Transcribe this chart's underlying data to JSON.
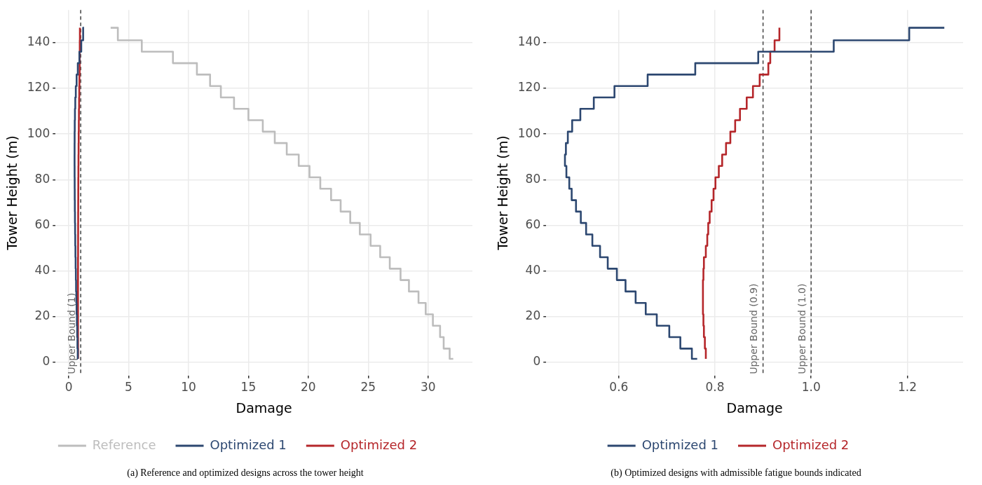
{
  "chart_data": [
    {
      "type": "step",
      "xlabel": "Damage",
      "ylabel": "Tower Height (m)",
      "xlim": [
        -1.1,
        33.7
      ],
      "ylim": [
        -5.8,
        154.3
      ],
      "xticks": [
        0,
        5,
        10,
        15,
        20,
        25,
        30
      ],
      "yticks": [
        0,
        20,
        40,
        60,
        80,
        100,
        120,
        140
      ],
      "grid": true,
      "legend": "bottom",
      "marker": "none",
      "ref_lines": [
        {
          "axis": "x",
          "value": 1,
          "label": "Upper Bound (1)",
          "color": "#4d4d4d",
          "line_style": "dashed"
        }
      ],
      "series": [
        {
          "name": "Reference",
          "color": "#bdbdbd",
          "x": [
            32.1,
            31.8,
            31.3,
            31.0,
            30.4,
            29.8,
            29.2,
            28.4,
            27.7,
            26.8,
            26.0,
            25.2,
            24.3,
            23.5,
            22.7,
            21.9,
            21.0,
            20.1,
            19.2,
            18.2,
            17.2,
            16.2,
            15.0,
            13.8,
            12.7,
            11.8,
            10.7,
            8.7,
            6.1,
            4.1,
            3.5
          ],
          "values": [
            1.5,
            6,
            11,
            16,
            21,
            26,
            31,
            36,
            41,
            46,
            51,
            56,
            61,
            66,
            71,
            76,
            81,
            86,
            91,
            96,
            101,
            106,
            111,
            116,
            121,
            126,
            131,
            136,
            141,
            146.5,
            146.5
          ]
        },
        {
          "name": "Optimized 1",
          "color": "#2c4770",
          "x": [
            0.763,
            0.752,
            0.728,
            0.705,
            0.679,
            0.656,
            0.635,
            0.614,
            0.596,
            0.577,
            0.561,
            0.545,
            0.532,
            0.521,
            0.511,
            0.502,
            0.497,
            0.491,
            0.488,
            0.49,
            0.494,
            0.503,
            0.52,
            0.548,
            0.591,
            0.66,
            0.759,
            0.89,
            1.047,
            1.204,
            1.277
          ],
          "values": [
            1.5,
            6,
            11,
            16,
            21,
            26,
            31,
            36,
            41,
            46,
            51,
            56,
            61,
            66,
            71,
            76,
            81,
            86,
            91,
            96,
            101,
            106,
            111,
            116,
            121,
            126,
            131,
            136,
            141,
            146.5,
            146.5
          ]
        },
        {
          "name": "Optimized 2",
          "color": "#b5262a",
          "x": [
            0.781,
            0.781,
            0.779,
            0.777,
            0.776,
            0.775,
            0.775,
            0.775,
            0.776,
            0.777,
            0.781,
            0.784,
            0.786,
            0.789,
            0.793,
            0.797,
            0.801,
            0.808,
            0.815,
            0.823,
            0.832,
            0.842,
            0.852,
            0.866,
            0.879,
            0.893,
            0.911,
            0.915,
            0.924,
            0.934,
            0.934
          ],
          "values": [
            1.5,
            6,
            11,
            16,
            21,
            26,
            31,
            36,
            41,
            46,
            51,
            56,
            61,
            66,
            71,
            76,
            81,
            86,
            91,
            96,
            101,
            106,
            111,
            116,
            121,
            126,
            131,
            136,
            141,
            146.5,
            146.5
          ]
        }
      ],
      "annotations": [
        "(a) Reference and optimized designs across the tower height"
      ]
    },
    {
      "type": "step",
      "xlabel": "Damage",
      "ylabel": "Tower Height (m)",
      "xlim": [
        0.449,
        1.316
      ],
      "ylim": [
        -5.8,
        154.3
      ],
      "xticks": [
        0.6,
        0.8,
        {
          "value": 1,
          "label": "1.0"
        },
        1.2
      ],
      "yticks": [
        0,
        20,
        40,
        60,
        80,
        100,
        120,
        140
      ],
      "grid": true,
      "legend": "bottom",
      "marker": "none",
      "ref_lines": [
        {
          "axis": "x",
          "value": 0.9,
          "label": "Upper Bound (0.9)",
          "color": "#4d4d4d",
          "line_style": "dashed"
        },
        {
          "axis": "x",
          "value": 1,
          "label": "Upper Bound (1.0)",
          "color": "#4d4d4d",
          "line_style": "dashed"
        }
      ],
      "series": [
        {
          "name": "Optimized 1",
          "color": "#2c4770",
          "x": [
            0.763,
            0.752,
            0.728,
            0.705,
            0.679,
            0.656,
            0.635,
            0.614,
            0.596,
            0.577,
            0.561,
            0.545,
            0.532,
            0.521,
            0.511,
            0.502,
            0.497,
            0.491,
            0.488,
            0.49,
            0.494,
            0.503,
            0.52,
            0.548,
            0.591,
            0.66,
            0.759,
            0.89,
            1.047,
            1.204,
            1.277
          ],
          "values": [
            1.5,
            6,
            11,
            16,
            21,
            26,
            31,
            36,
            41,
            46,
            51,
            56,
            61,
            66,
            71,
            76,
            81,
            86,
            91,
            96,
            101,
            106,
            111,
            116,
            121,
            126,
            131,
            136,
            141,
            146.5,
            146.5
          ]
        },
        {
          "name": "Optimized 2",
          "color": "#b5262a",
          "x": [
            0.781,
            0.781,
            0.779,
            0.777,
            0.776,
            0.775,
            0.775,
            0.775,
            0.776,
            0.777,
            0.781,
            0.784,
            0.786,
            0.789,
            0.793,
            0.797,
            0.801,
            0.808,
            0.815,
            0.823,
            0.832,
            0.842,
            0.852,
            0.866,
            0.879,
            0.893,
            0.911,
            0.915,
            0.924,
            0.934,
            0.934
          ],
          "values": [
            1.5,
            6,
            11,
            16,
            21,
            26,
            31,
            36,
            41,
            46,
            51,
            56,
            61,
            66,
            71,
            76,
            81,
            86,
            91,
            96,
            101,
            106,
            111,
            116,
            121,
            126,
            131,
            136,
            141,
            146.5,
            146.5
          ]
        }
      ],
      "annotations": [
        "(b) Optimized designs with admissible fatigue bounds indicated"
      ]
    }
  ]
}
